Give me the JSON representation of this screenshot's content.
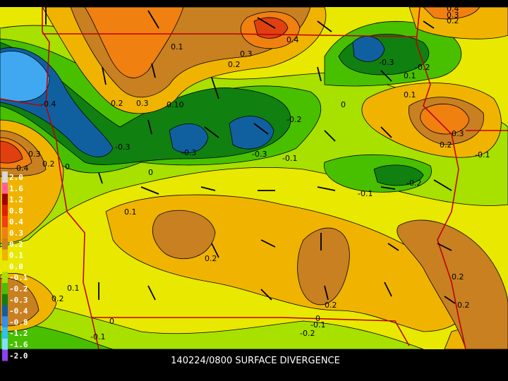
{
  "caption": "140224/0800 SURFACE DIVERGENCE",
  "legend": [
    "2.0",
    "1.6",
    "1.2",
    "0.8",
    "0.4",
    "0.3",
    "0.2",
    "0.1",
    "0.0",
    "-0.1",
    "-0.2",
    "-0.3",
    "-0.4",
    "-0.8",
    "-1.2",
    "-1.6",
    "-2.0"
  ],
  "contour_labels": [
    "0.1",
    "0.3",
    "0.2",
    "0.4",
    "0.4",
    "0.3",
    "0.2",
    "-0.3",
    "-0.2",
    "0.1",
    "0.1",
    "-0.4",
    "0.2",
    "0.3",
    "0.10",
    "0",
    "-0.2",
    "-0.3",
    "-0.3",
    "-0.3",
    "-0.1",
    "0.3",
    "0.2",
    "-0.1",
    "0.3",
    "0.4",
    "0.2",
    "0",
    "0",
    "-0.1",
    "-0.2",
    "0.1",
    "0.2",
    "0.2",
    "0.2",
    "0.2",
    "0.1",
    "0.2",
    "0",
    "-0.1",
    "-0.2",
    "0",
    "-0.1"
  ]
}
